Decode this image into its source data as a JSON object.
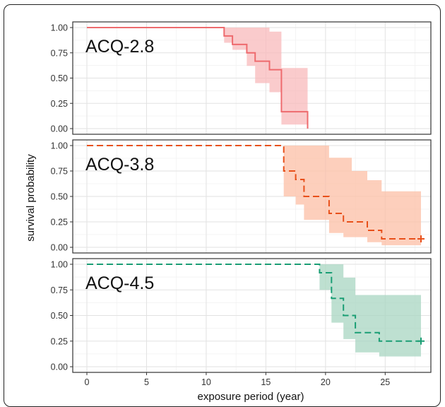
{
  "chart_data": {
    "type": "line",
    "subtype": "kaplan-meier survival curves with confidence bands, faceted",
    "xlabel": "exposure period (year)",
    "ylabel": "survival probability",
    "xlim": [
      0,
      28
    ],
    "ylim": [
      0,
      1
    ],
    "xticks": [
      "0",
      "5",
      "10",
      "15",
      "20",
      "25"
    ],
    "yticks": [
      "0.00",
      "0.25",
      "0.50",
      "0.75",
      "1.00"
    ],
    "grid": true,
    "panels": [
      {
        "name": "ACQ-2.8",
        "color": "#EE6B6E",
        "band_color": "#F8B9BB",
        "line_style": "solid",
        "steps": [
          [
            0,
            1.0
          ],
          [
            11.5,
            1.0
          ],
          [
            11.5,
            0.917
          ],
          [
            12.2,
            0.917
          ],
          [
            12.2,
            0.833
          ],
          [
            13.4,
            0.833
          ],
          [
            13.4,
            0.75
          ],
          [
            14.1,
            0.75
          ],
          [
            14.1,
            0.667
          ],
          [
            15.3,
            0.667
          ],
          [
            15.3,
            0.583
          ],
          [
            16.3,
            0.583
          ],
          [
            16.3,
            0.167
          ],
          [
            18.5,
            0.167
          ],
          [
            18.5,
            0.0
          ]
        ],
        "band_upper": [
          [
            11.5,
            1.0
          ],
          [
            15.3,
            1.0
          ],
          [
            15.3,
            0.96
          ],
          [
            16.3,
            0.96
          ],
          [
            16.3,
            0.6
          ],
          [
            18.5,
            0.6
          ]
        ],
        "band_lower": [
          [
            11.5,
            0.85
          ],
          [
            12.2,
            0.78
          ],
          [
            13.4,
            0.62
          ],
          [
            14.1,
            0.45
          ],
          [
            15.3,
            0.36
          ],
          [
            16.3,
            0.04
          ],
          [
            18.5,
            0.04
          ]
        ]
      },
      {
        "name": "ACQ-3.8",
        "color": "#E8501A",
        "band_color": "#FCBFA6",
        "line_style": "dashed",
        "steps": [
          [
            0,
            1.0
          ],
          [
            16.5,
            1.0
          ],
          [
            16.5,
            0.75
          ],
          [
            17.5,
            0.75
          ],
          [
            17.5,
            0.667
          ],
          [
            18.2,
            0.667
          ],
          [
            18.2,
            0.5
          ],
          [
            20.3,
            0.5
          ],
          [
            20.3,
            0.333
          ],
          [
            21.5,
            0.333
          ],
          [
            21.5,
            0.25
          ],
          [
            23.5,
            0.25
          ],
          [
            23.5,
            0.167
          ],
          [
            24.7,
            0.167
          ],
          [
            24.7,
            0.083
          ],
          [
            28,
            0.083
          ]
        ],
        "band_upper": [
          [
            16.5,
            1.0
          ],
          [
            20.3,
            1.0
          ],
          [
            20.3,
            0.88
          ],
          [
            22.2,
            0.88
          ],
          [
            22.2,
            0.75
          ],
          [
            23.5,
            0.75
          ],
          [
            23.5,
            0.66
          ],
          [
            24.7,
            0.66
          ],
          [
            24.7,
            0.55
          ],
          [
            28,
            0.55
          ]
        ],
        "band_lower": [
          [
            16.5,
            0.5
          ],
          [
            17.5,
            0.42
          ],
          [
            18.2,
            0.27
          ],
          [
            20.3,
            0.14
          ],
          [
            21.5,
            0.1
          ],
          [
            23.5,
            0.05
          ],
          [
            24.7,
            0.02
          ],
          [
            28,
            0.02
          ]
        ]
      },
      {
        "name": "ACQ-4.5",
        "color": "#1A9E74",
        "band_color": "#A8D5C1",
        "line_style": "dashed",
        "steps": [
          [
            0,
            1.0
          ],
          [
            19.5,
            1.0
          ],
          [
            19.5,
            0.917
          ],
          [
            20.5,
            0.917
          ],
          [
            20.5,
            0.667
          ],
          [
            21.5,
            0.667
          ],
          [
            21.5,
            0.5
          ],
          [
            22.5,
            0.5
          ],
          [
            22.5,
            0.333
          ],
          [
            24.5,
            0.333
          ],
          [
            24.5,
            0.25
          ],
          [
            28,
            0.25
          ]
        ],
        "band_upper": [
          [
            19.5,
            1.0
          ],
          [
            21.5,
            1.0
          ],
          [
            21.5,
            0.87
          ],
          [
            22.5,
            0.87
          ],
          [
            22.5,
            0.7
          ],
          [
            28,
            0.7
          ]
        ],
        "band_lower": [
          [
            19.5,
            0.75
          ],
          [
            20.5,
            0.43
          ],
          [
            21.5,
            0.27
          ],
          [
            22.5,
            0.14
          ],
          [
            24.5,
            0.1
          ],
          [
            28,
            0.1
          ]
        ]
      }
    ]
  }
}
